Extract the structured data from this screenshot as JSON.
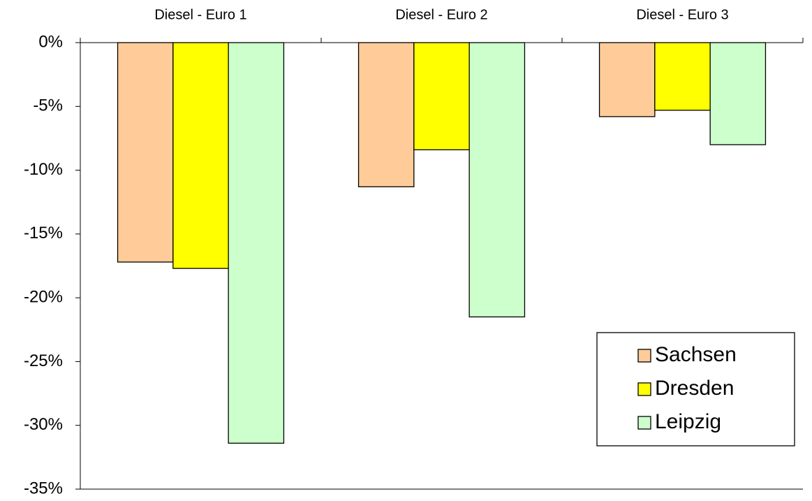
{
  "chart_data": {
    "type": "bar",
    "categories": [
      "Diesel - Euro 1",
      "Diesel - Euro 2",
      "Diesel - Euro 3"
    ],
    "series": [
      {
        "name": "Sachsen",
        "color": "#ffcc99",
        "values": [
          -17.2,
          -11.3,
          -5.8
        ]
      },
      {
        "name": "Dresden",
        "color": "#ffff00",
        "values": [
          -17.7,
          -8.4,
          -5.3
        ]
      },
      {
        "name": "Leipzig",
        "color": "#ccffcc",
        "values": [
          -31.4,
          -21.5,
          -8.0
        ]
      }
    ],
    "ylim": [
      -35,
      0
    ],
    "yticks": [
      {
        "value": 0,
        "label": "0%"
      },
      {
        "value": -5,
        "label": "-5%"
      },
      {
        "value": -10,
        "label": "-10%"
      },
      {
        "value": -15,
        "label": "-15%"
      },
      {
        "value": -20,
        "label": "-20%"
      },
      {
        "value": -25,
        "label": "-25%"
      },
      {
        "value": -30,
        "label": "-30%"
      },
      {
        "value": -35,
        "label": "-35%"
      }
    ],
    "legend": "lower right"
  }
}
